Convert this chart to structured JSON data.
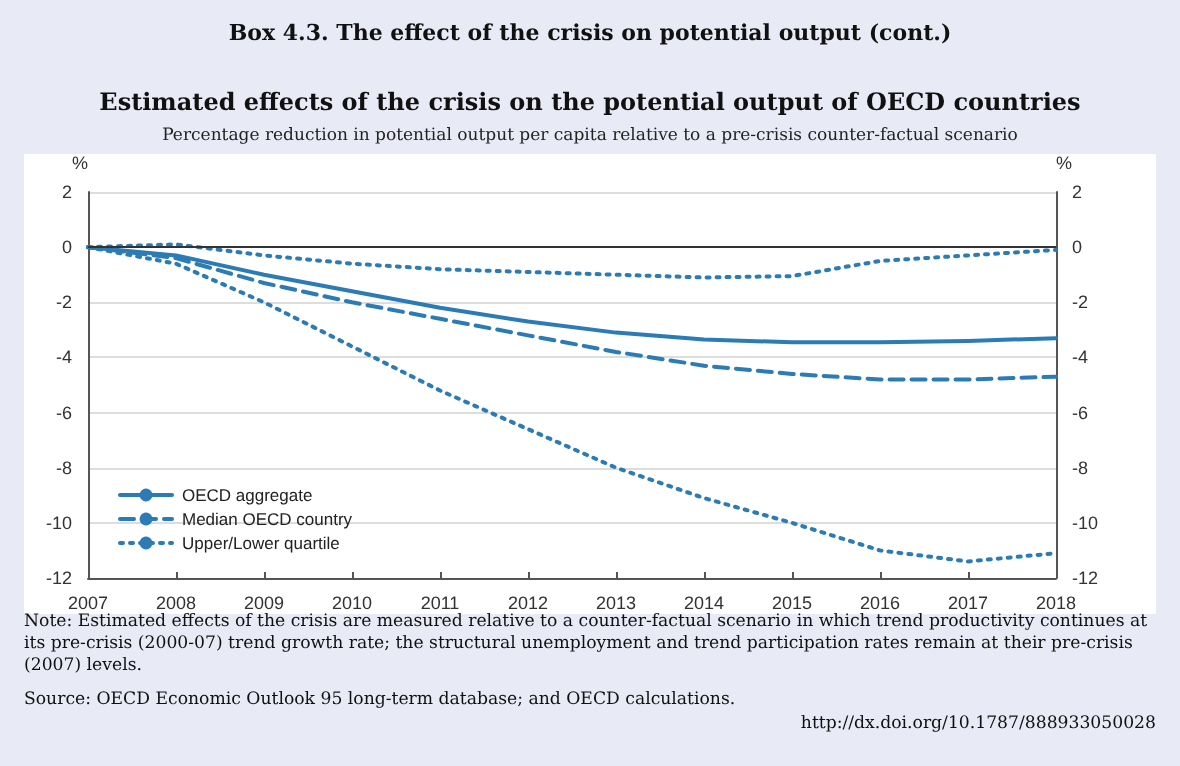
{
  "chart_data": {
    "type": "line",
    "title": "Estimated effects of the crisis on the potential output of OECD countries",
    "subtitle": "Percentage reduction in potential output per capita relative to a pre-crisis counter-factual scenario",
    "ylabel": "%",
    "y2label": "%",
    "categories": [
      "2007",
      "2008",
      "2009",
      "2010",
      "2011",
      "2012",
      "2013",
      "2014",
      "2015",
      "2016",
      "2017",
      "2018"
    ],
    "series": [
      {
        "name": "OECD aggregate",
        "color": "#2b7bb5",
        "line_style": "solid",
        "values": [
          0,
          -0.3,
          -1.0,
          -1.6,
          -2.2,
          -2.7,
          -3.1,
          -3.35,
          -3.45,
          -3.45,
          -3.4,
          -3.3
        ]
      },
      {
        "name": "Median OECD country",
        "color": "#2b7bb5",
        "line_style": "dashed",
        "values": [
          0,
          -0.4,
          -1.3,
          -2.0,
          -2.6,
          -3.2,
          -3.8,
          -4.3,
          -4.6,
          -4.8,
          -4.8,
          -4.7
        ]
      },
      {
        "name": "Upper/Lower quartile",
        "color": "#2b7bb5",
        "line_style": "dotted",
        "values": [
          0,
          0.1,
          -0.3,
          -0.6,
          -0.8,
          -0.9,
          -1.0,
          -1.1,
          -1.05,
          -0.5,
          -0.3,
          -0.1
        ]
      },
      {
        "color": "#2b7bb5",
        "line_style": "dotted",
        "values": [
          0,
          -0.6,
          -2.0,
          -3.6,
          -5.2,
          -6.6,
          -8.0,
          -9.1,
          -10.0,
          -11.0,
          -11.4,
          -11.1
        ]
      }
    ],
    "ylim": [
      -12,
      2
    ],
    "yticks": [
      -12,
      -10,
      -8,
      -6,
      -4,
      -2,
      0,
      2
    ],
    "y2lim": [
      -12,
      2
    ],
    "y2ticks": [
      -12,
      -10,
      -8,
      -6,
      -4,
      -2,
      0,
      2
    ],
    "ref_lines": [
      {
        "axis": "y",
        "value": 0,
        "color": "#333333"
      }
    ],
    "grid": "y",
    "legend": "bottom left",
    "marker": "none",
    "annotations": [
      "Box 4.3. The effect of the crisis on potential output (cont.)",
      "Note: Estimated effects of the crisis are measured relative to a counter-factual scenario in which trend productivity continues at its pre-crisis (2000-07) trend growth rate; the structural unemployment and trend participation rates remain at their pre-crisis (2007) levels.",
      "Source: OECD Economic Outlook 95 long-term database; and OECD calculations.",
      "http://dx.doi.org/10.1787/888933050028"
    ]
  }
}
